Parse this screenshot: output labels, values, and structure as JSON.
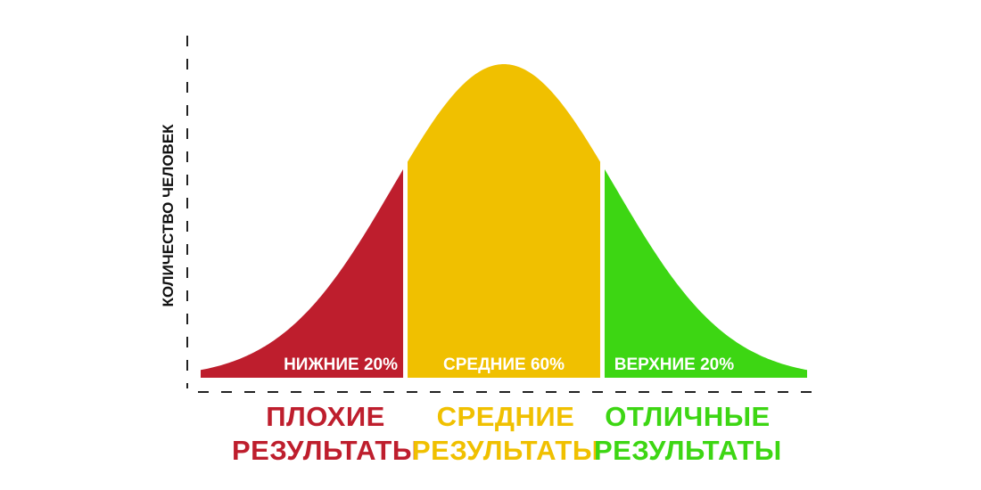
{
  "chart_data": {
    "type": "area",
    "shape": "normal-distribution",
    "ylabel": "КОЛИЧЕСТВО ЧЕЛОВЕК",
    "xlabel": "",
    "segments": [
      {
        "label": "НИЖНИЕ 20%",
        "share_percent": 20,
        "color": "#be1e2d",
        "category_line1": "ПЛОХИЕ",
        "category_line2": "РЕЗУЛЬТАТЫ"
      },
      {
        "label": "СРЕДНИЕ 60%",
        "share_percent": 60,
        "color": "#f0c000",
        "category_line1": "СРЕДНИЕ",
        "category_line2": "РЕЗУЛЬТАТЫ"
      },
      {
        "label": "ВЕРХНИЕ 20%",
        "share_percent": 20,
        "color": "#3dd613",
        "category_line1": "ОТЛИЧНЫЕ",
        "category_line2": "РЕЗУЛЬТАТЫ"
      }
    ],
    "axis_style": "dashed",
    "grid": false,
    "legend": "none"
  }
}
